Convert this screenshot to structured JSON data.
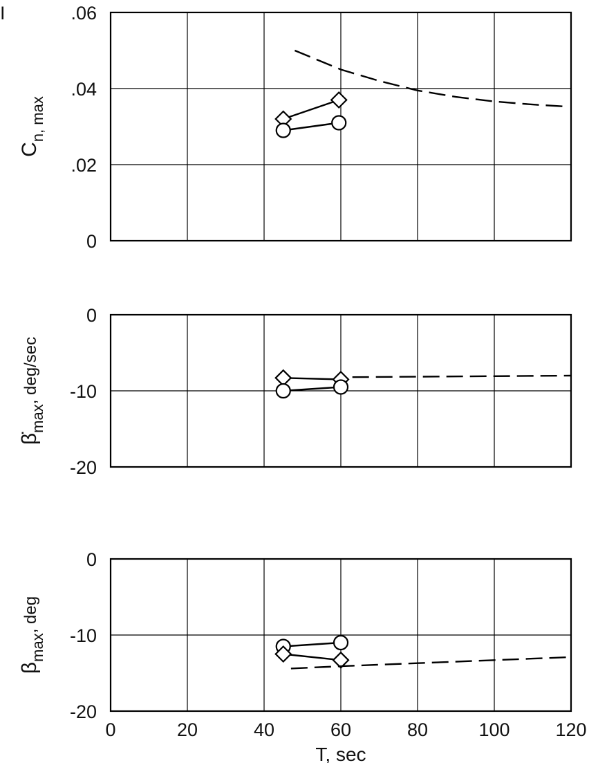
{
  "page_mark": "I",
  "chart_data": {
    "type": "line",
    "shared_x": {
      "label": "T,  sec",
      "range": [
        0,
        120
      ],
      "ticks": [
        "0",
        "20",
        "40",
        "60",
        "80",
        "100",
        "120"
      ],
      "tick_values": [
        0,
        20,
        40,
        60,
        80,
        100,
        120
      ]
    },
    "grid": true,
    "panels": [
      {
        "id": "cn",
        "ylabel_main": "C",
        "ylabel_sub": "n, max",
        "ylabel_unit": "",
        "ylim": [
          0,
          0.06
        ],
        "yticks": [
          ".06",
          ".04",
          ".02",
          "0"
        ],
        "ytick_values": [
          0.06,
          0.04,
          0.02,
          0
        ],
        "series": [
          {
            "marker": "diamond",
            "x": [
              45,
              59.5
            ],
            "y": [
              0.032,
              0.037
            ]
          },
          {
            "marker": "circle",
            "x": [
              45,
              59.5
            ],
            "y": [
              0.029,
              0.031
            ]
          },
          {
            "style": "dashed",
            "x": [
              48,
              60,
              70,
              80,
              90,
              100,
              110,
              118
            ],
            "y": [
              0.05,
              0.045,
              0.042,
              0.0395,
              0.0378,
              0.0366,
              0.0358,
              0.0353
            ]
          }
        ]
      },
      {
        "id": "betadot",
        "ylabel_main": "β̇",
        "ylabel_sub": "max",
        "ylabel_unit": ",  deg/sec",
        "ylim": [
          -20,
          0
        ],
        "yticks": [
          "0",
          "-10",
          "-20"
        ],
        "ytick_values": [
          0,
          -10,
          -20
        ],
        "series": [
          {
            "marker": "diamond",
            "x": [
              45,
              60
            ],
            "y": [
              -8.3,
              -8.5
            ]
          },
          {
            "marker": "circle",
            "x": [
              45,
              60
            ],
            "y": [
              -10.0,
              -9.5
            ]
          },
          {
            "style": "dashed",
            "x": [
              63,
              120
            ],
            "y": [
              -8.2,
              -8.0
            ]
          }
        ]
      },
      {
        "id": "beta",
        "ylabel_main": "β",
        "ylabel_sub": "max",
        "ylabel_unit": ",  deg",
        "ylim": [
          -20,
          0
        ],
        "yticks": [
          "0",
          "-10",
          "-20"
        ],
        "ytick_values": [
          0,
          -10,
          -20
        ],
        "series": [
          {
            "marker": "circle",
            "x": [
              45,
              60
            ],
            "y": [
              -11.5,
              -11.0
            ]
          },
          {
            "marker": "diamond",
            "x": [
              45,
              60
            ],
            "y": [
              -12.5,
              -13.3
            ]
          },
          {
            "style": "dashed",
            "x": [
              47,
              60,
              70,
              80,
              90,
              100,
              110,
              120
            ],
            "y": [
              -14.4,
              -14.1,
              -13.9,
              -13.7,
              -13.5,
              -13.3,
              -13.1,
              -12.9
            ]
          }
        ]
      }
    ]
  }
}
